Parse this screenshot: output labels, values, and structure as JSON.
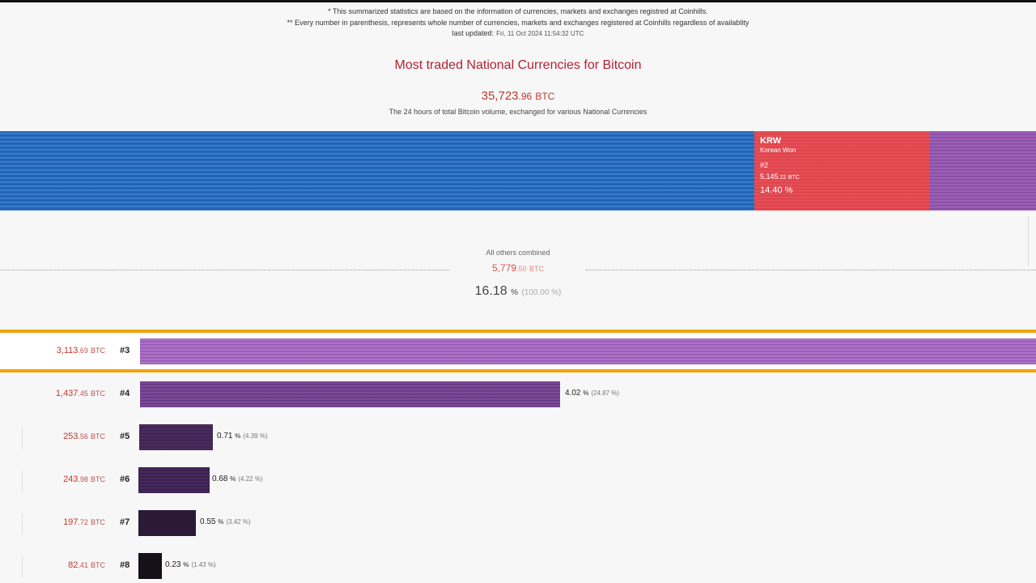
{
  "notes": {
    "line1": "* This summarized statistics are based on the information of currencies, markets and exchanges registred at Coinhills.",
    "line2": "** Every number in parenthesis, represents whole number of currencies, markets and exchanges registered at Coinhills regardless of availablity",
    "last_updated_label": "last updated:",
    "last_updated_value": "Fri, 11 Oct 2024 11:54:32 UTC"
  },
  "header": {
    "title": "Most traded National Currencies for Bitcoin",
    "total_int": "35,723",
    "total_dec": ".96",
    "total_unit": "BTC",
    "subtitle": "The 24 hours of total Bitcoin volume, exchanged for various National Currencies"
  },
  "main_bar": {
    "krw": {
      "code": "KRW",
      "name": "Korean Won",
      "rank": "#2",
      "value_int": "5,145",
      "value_dec": ".22",
      "unit": "BTC",
      "percent": "14.40 %"
    }
  },
  "others": {
    "label": "All others combined",
    "value_int": "5,779",
    "value_dec": ".50",
    "unit": "BTC",
    "percent": "16.18",
    "percent_sym": "%",
    "percent_total": "(100.00 %)"
  },
  "rows": [
    {
      "rank": "#3",
      "value_int": "3,113",
      "value_dec": ".69",
      "unit": "BTC",
      "percent": "",
      "sym": "",
      "paren": ""
    },
    {
      "rank": "#4",
      "value_int": "1,437",
      "value_dec": ".45",
      "unit": "BTC",
      "percent": "4.02",
      "sym": "%",
      "paren": "(24.87 %)"
    },
    {
      "rank": "#5",
      "value_int": "253",
      "value_dec": ".56",
      "unit": "BTC",
      "percent": "0.71",
      "sym": "%",
      "paren": "(4.39 %)"
    },
    {
      "rank": "#6",
      "value_int": "243",
      "value_dec": ".98",
      "unit": "BTC",
      "percent": "0.68",
      "sym": "%",
      "paren": "(4.22 %)"
    },
    {
      "rank": "#7",
      "value_int": "197",
      "value_dec": ".72",
      "unit": "BTC",
      "percent": "0.55",
      "sym": "%",
      "paren": "(3.42 %)"
    },
    {
      "rank": "#8",
      "value_int": "82",
      "value_dec": ".41",
      "unit": "BTC",
      "percent": "0.23",
      "sym": "%",
      "paren": "(1.43 %)"
    }
  ],
  "colors": {
    "accent": "#b22234",
    "highlight": "#f0a30a",
    "usd_bar": "#2a6fc4",
    "krw_bar": "#e0454d"
  }
}
